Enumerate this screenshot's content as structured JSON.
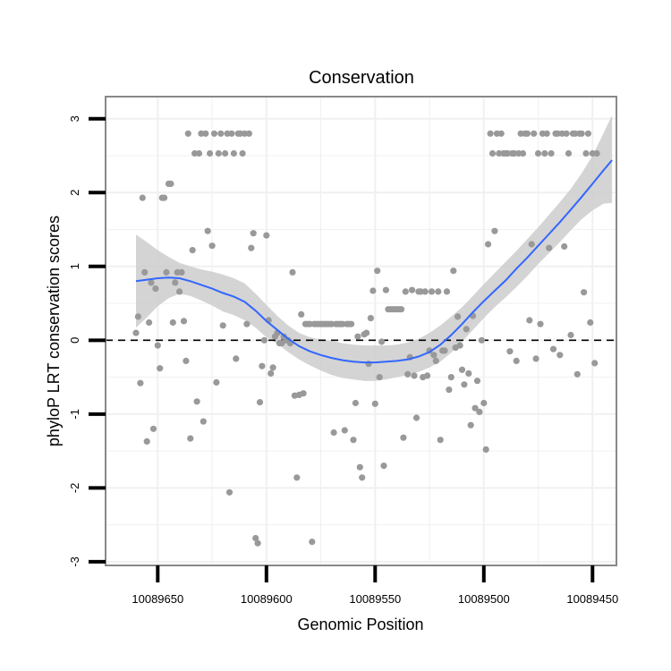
{
  "chart_data": {
    "type": "scatter",
    "title": "Conservation",
    "xlabel": "Genomic Position",
    "ylabel": "phyloP LRT conservation scores",
    "x_reversed": true,
    "xlim": [
      10089674,
      10089439
    ],
    "ylim": [
      -3.05,
      3.3
    ],
    "x_ticks": [
      {
        "value": 10089650,
        "label": "10089650"
      },
      {
        "value": 10089600,
        "label": "10089600"
      },
      {
        "value": 10089550,
        "label": "10089550"
      },
      {
        "value": 10089500,
        "label": "10089500"
      },
      {
        "value": 10089450,
        "label": "10089450"
      }
    ],
    "y_ticks": [
      {
        "value": 3,
        "label": "3"
      },
      {
        "value": 2,
        "label": "2"
      },
      {
        "value": 1,
        "label": "1"
      },
      {
        "value": 0,
        "label": "0"
      },
      {
        "value": -1,
        "label": "-1"
      },
      {
        "value": -2,
        "label": "-2"
      },
      {
        "value": -3,
        "label": "-3"
      }
    ],
    "reference_line": {
      "y": 0,
      "style": "dashed"
    },
    "grid": true,
    "colors": {
      "points": "#999999",
      "smooth_line": "#3366ff",
      "confidence_band": "#cccccc",
      "panel_border": "#888888",
      "grid": "#f0f0f0",
      "reference_line": "#000000"
    },
    "points": [
      [
        10089660,
        0.1
      ],
      [
        10089659,
        0.32
      ],
      [
        10089658,
        -0.58
      ],
      [
        10089657,
        1.93
      ],
      [
        10089656,
        0.92
      ],
      [
        10089655,
        -1.37
      ],
      [
        10089654,
        0.24
      ],
      [
        10089653,
        0.78
      ],
      [
        10089652,
        -1.2
      ],
      [
        10089651,
        0.7
      ],
      [
        10089650,
        -0.07
      ],
      [
        10089649,
        -0.38
      ],
      [
        10089648,
        1.93
      ],
      [
        10089647,
        1.93
      ],
      [
        10089646,
        0.92
      ],
      [
        10089645,
        2.12
      ],
      [
        10089644,
        2.12
      ],
      [
        10089643,
        0.24
      ],
      [
        10089642,
        0.78
      ],
      [
        10089641,
        0.92
      ],
      [
        10089640,
        0.66
      ],
      [
        10089639,
        0.92
      ],
      [
        10089638,
        0.26
      ],
      [
        10089637,
        -0.28
      ],
      [
        10089636,
        2.8
      ],
      [
        10089635,
        -1.33
      ],
      [
        10089634,
        1.22
      ],
      [
        10089633,
        2.53
      ],
      [
        10089632,
        -0.83
      ],
      [
        10089631,
        2.53
      ],
      [
        10089630,
        2.8
      ],
      [
        10089629,
        -1.1
      ],
      [
        10089628,
        2.8
      ],
      [
        10089627,
        1.48
      ],
      [
        10089626,
        2.53
      ],
      [
        10089625,
        1.28
      ],
      [
        10089624,
        2.8
      ],
      [
        10089623,
        -0.57
      ],
      [
        10089622,
        2.53
      ],
      [
        10089621,
        2.8
      ],
      [
        10089620,
        0.2
      ],
      [
        10089619,
        2.53
      ],
      [
        10089618,
        2.8
      ],
      [
        10089617,
        -2.06
      ],
      [
        10089616,
        2.8
      ],
      [
        10089615,
        2.53
      ],
      [
        10089614,
        -0.25
      ],
      [
        10089613,
        2.8
      ],
      [
        10089612,
        2.8
      ],
      [
        10089611,
        2.53
      ],
      [
        10089610,
        2.8
      ],
      [
        10089609,
        0.22
      ],
      [
        10089608,
        2.8
      ],
      [
        10089607,
        1.25
      ],
      [
        10089606,
        1.45
      ],
      [
        10089605,
        -2.68
      ],
      [
        10089604,
        -2.75
      ],
      [
        10089603,
        -0.84
      ],
      [
        10089602,
        -0.35
      ],
      [
        10089601,
        0.0
      ],
      [
        10089600,
        1.42
      ],
      [
        10089599,
        0.27
      ],
      [
        10089598,
        -0.45
      ],
      [
        10089597,
        -0.37
      ],
      [
        10089596,
        0.05
      ],
      [
        10089595,
        0.1
      ],
      [
        10089594,
        -0.04
      ],
      [
        10089593,
        -0.04
      ],
      [
        10089592,
        0.05
      ],
      [
        10089591,
        0.0
      ],
      [
        10089590,
        0.0
      ],
      [
        10089589,
        -0.04
      ],
      [
        10089588,
        0.92
      ],
      [
        10089587,
        -0.75
      ],
      [
        10089586,
        -1.86
      ],
      [
        10089585,
        -0.74
      ],
      [
        10089584,
        0.35
      ],
      [
        10089583,
        -0.72
      ],
      [
        10089582,
        0.22
      ],
      [
        10089581,
        0.22
      ],
      [
        10089580,
        0.22
      ],
      [
        10089579,
        -2.73
      ],
      [
        10089578,
        0.22
      ],
      [
        10089577,
        0.22
      ],
      [
        10089576,
        0.22
      ],
      [
        10089575,
        0.22
      ],
      [
        10089574,
        0.22
      ],
      [
        10089573,
        0.22
      ],
      [
        10089572,
        0.22
      ],
      [
        10089571,
        0.22
      ],
      [
        10089570,
        0.22
      ],
      [
        10089569,
        -1.25
      ],
      [
        10089568,
        0.22
      ],
      [
        10089567,
        0.22
      ],
      [
        10089566,
        0.22
      ],
      [
        10089565,
        0.22
      ],
      [
        10089564,
        -1.22
      ],
      [
        10089563,
        0.22
      ],
      [
        10089562,
        0.22
      ],
      [
        10089561,
        0.22
      ],
      [
        10089560,
        -1.35
      ],
      [
        10089559,
        -0.85
      ],
      [
        10089558,
        0.05
      ],
      [
        10089557,
        -1.72
      ],
      [
        10089556,
        -1.86
      ],
      [
        10089555,
        0.08
      ],
      [
        10089554,
        0.1
      ],
      [
        10089553,
        -0.32
      ],
      [
        10089552,
        0.3
      ],
      [
        10089551,
        0.67
      ],
      [
        10089550,
        -0.86
      ],
      [
        10089549,
        0.94
      ],
      [
        10089548,
        -0.5
      ],
      [
        10089547,
        -0.02
      ],
      [
        10089546,
        -1.7
      ],
      [
        10089545,
        0.68
      ],
      [
        10089544,
        0.42
      ],
      [
        10089543,
        0.42
      ],
      [
        10089542,
        0.42
      ],
      [
        10089541,
        0.42
      ],
      [
        10089540,
        0.42
      ],
      [
        10089539,
        0.42
      ],
      [
        10089538,
        0.42
      ],
      [
        10089537,
        -1.32
      ],
      [
        10089536,
        0.66
      ],
      [
        10089535,
        -0.46
      ],
      [
        10089534,
        -0.23
      ],
      [
        10089533,
        0.68
      ],
      [
        10089532,
        -0.48
      ],
      [
        10089531,
        -1.05
      ],
      [
        10089530,
        0.66
      ],
      [
        10089529,
        0.66
      ],
      [
        10089528,
        -0.5
      ],
      [
        10089527,
        0.66
      ],
      [
        10089526,
        -0.48
      ],
      [
        10089525,
        -0.14
      ],
      [
        10089524,
        0.66
      ],
      [
        10089523,
        -0.2
      ],
      [
        10089522,
        -0.28
      ],
      [
        10089521,
        0.66
      ],
      [
        10089520,
        -1.35
      ],
      [
        10089519,
        -0.14
      ],
      [
        10089518,
        -0.14
      ],
      [
        10089517,
        0.66
      ],
      [
        10089516,
        -0.67
      ],
      [
        10089515,
        -0.5
      ],
      [
        10089514,
        0.94
      ],
      [
        10089513,
        -0.1
      ],
      [
        10089512,
        0.32
      ],
      [
        10089511,
        -0.07
      ],
      [
        10089510,
        -0.4
      ],
      [
        10089509,
        -0.6
      ],
      [
        10089508,
        0.15
      ],
      [
        10089507,
        -0.45
      ],
      [
        10089506,
        -1.15
      ],
      [
        10089505,
        0.33
      ],
      [
        10089504,
        -0.92
      ],
      [
        10089503,
        -0.55
      ],
      [
        10089502,
        -0.97
      ],
      [
        10089501,
        0.0
      ],
      [
        10089500,
        -0.85
      ],
      [
        10089499,
        -1.48
      ],
      [
        10089498,
        1.3
      ],
      [
        10089497,
        2.8
      ],
      [
        10089496,
        2.53
      ],
      [
        10089495,
        1.48
      ],
      [
        10089494,
        2.8
      ],
      [
        10089493,
        2.53
      ],
      [
        10089492,
        2.8
      ],
      [
        10089491,
        2.53
      ],
      [
        10089490,
        2.53
      ],
      [
        10089489,
        2.53
      ],
      [
        10089488,
        -0.15
      ],
      [
        10089487,
        2.53
      ],
      [
        10089486,
        2.53
      ],
      [
        10089485,
        -0.28
      ],
      [
        10089484,
        2.53
      ],
      [
        10089483,
        2.8
      ],
      [
        10089482,
        2.53
      ],
      [
        10089481,
        2.8
      ],
      [
        10089480,
        2.8
      ],
      [
        10089479,
        0.27
      ],
      [
        10089478,
        1.3
      ],
      [
        10089477,
        2.8
      ],
      [
        10089476,
        -0.25
      ],
      [
        10089475,
        2.53
      ],
      [
        10089474,
        0.22
      ],
      [
        10089473,
        2.8
      ],
      [
        10089472,
        2.53
      ],
      [
        10089471,
        2.8
      ],
      [
        10089470,
        1.25
      ],
      [
        10089469,
        2.53
      ],
      [
        10089468,
        -0.12
      ],
      [
        10089467,
        2.8
      ],
      [
        10089466,
        2.8
      ],
      [
        10089465,
        -0.2
      ],
      [
        10089464,
        2.8
      ],
      [
        10089463,
        1.27
      ],
      [
        10089462,
        2.8
      ],
      [
        10089461,
        2.53
      ],
      [
        10089460,
        0.07
      ],
      [
        10089459,
        2.8
      ],
      [
        10089458,
        2.8
      ],
      [
        10089457,
        -0.46
      ],
      [
        10089456,
        2.8
      ],
      [
        10089455,
        2.8
      ],
      [
        10089454,
        0.65
      ],
      [
        10089453,
        2.53
      ],
      [
        10089452,
        2.8
      ],
      [
        10089451,
        0.24
      ],
      [
        10089450,
        2.53
      ],
      [
        10089449,
        -0.31
      ],
      [
        10089448,
        2.53
      ]
    ],
    "smooth_curve": [
      [
        10089660,
        0.8
      ],
      [
        10089655,
        0.82
      ],
      [
        10089650,
        0.84
      ],
      [
        10089645,
        0.85
      ],
      [
        10089640,
        0.84
      ],
      [
        10089635,
        0.8
      ],
      [
        10089630,
        0.75
      ],
      [
        10089625,
        0.7
      ],
      [
        10089620,
        0.64
      ],
      [
        10089615,
        0.59
      ],
      [
        10089610,
        0.52
      ],
      [
        10089605,
        0.4
      ],
      [
        10089600,
        0.26
      ],
      [
        10089595,
        0.14
      ],
      [
        10089590,
        0.02
      ],
      [
        10089585,
        -0.08
      ],
      [
        10089580,
        -0.15
      ],
      [
        10089575,
        -0.2
      ],
      [
        10089570,
        -0.24
      ],
      [
        10089565,
        -0.27
      ],
      [
        10089560,
        -0.29
      ],
      [
        10089555,
        -0.3
      ],
      [
        10089550,
        -0.3
      ],
      [
        10089545,
        -0.29
      ],
      [
        10089540,
        -0.28
      ],
      [
        10089535,
        -0.26
      ],
      [
        10089530,
        -0.22
      ],
      [
        10089525,
        -0.16
      ],
      [
        10089520,
        -0.06
      ],
      [
        10089515,
        0.07
      ],
      [
        10089510,
        0.22
      ],
      [
        10089505,
        0.38
      ],
      [
        10089500,
        0.53
      ],
      [
        10089495,
        0.67
      ],
      [
        10089490,
        0.81
      ],
      [
        10089485,
        0.97
      ],
      [
        10089480,
        1.12
      ],
      [
        10089475,
        1.28
      ],
      [
        10089470,
        1.44
      ],
      [
        10089465,
        1.6
      ],
      [
        10089460,
        1.77
      ],
      [
        10089455,
        1.94
      ],
      [
        10089450,
        2.12
      ],
      [
        10089445,
        2.3
      ],
      [
        10089441,
        2.44
      ]
    ],
    "confidence_band": {
      "upper": [
        [
          10089660,
          1.43
        ],
        [
          10089655,
          1.33
        ],
        [
          10089650,
          1.22
        ],
        [
          10089645,
          1.13
        ],
        [
          10089640,
          1.05
        ],
        [
          10089635,
          1.0
        ],
        [
          10089630,
          0.96
        ],
        [
          10089625,
          0.93
        ],
        [
          10089620,
          0.89
        ],
        [
          10089615,
          0.84
        ],
        [
          10089610,
          0.77
        ],
        [
          10089605,
          0.63
        ],
        [
          10089600,
          0.48
        ],
        [
          10089595,
          0.33
        ],
        [
          10089590,
          0.2
        ],
        [
          10089585,
          0.1
        ],
        [
          10089580,
          0.04
        ],
        [
          10089575,
          0.01
        ],
        [
          10089570,
          -0.01
        ],
        [
          10089565,
          -0.04
        ],
        [
          10089560,
          -0.06
        ],
        [
          10089555,
          -0.07
        ],
        [
          10089550,
          -0.07
        ],
        [
          10089545,
          -0.07
        ],
        [
          10089540,
          -0.06
        ],
        [
          10089535,
          -0.03
        ],
        [
          10089530,
          0.02
        ],
        [
          10089525,
          0.1
        ],
        [
          10089520,
          0.2
        ],
        [
          10089515,
          0.32
        ],
        [
          10089510,
          0.45
        ],
        [
          10089505,
          0.6
        ],
        [
          10089500,
          0.76
        ],
        [
          10089495,
          0.91
        ],
        [
          10089490,
          1.06
        ],
        [
          10089485,
          1.21
        ],
        [
          10089480,
          1.37
        ],
        [
          10089475,
          1.53
        ],
        [
          10089470,
          1.7
        ],
        [
          10089465,
          1.87
        ],
        [
          10089460,
          2.05
        ],
        [
          10089455,
          2.26
        ],
        [
          10089450,
          2.5
        ],
        [
          10089445,
          2.8
        ],
        [
          10089441,
          3.05
        ]
      ],
      "lower": [
        [
          10089660,
          0.17
        ],
        [
          10089655,
          0.31
        ],
        [
          10089650,
          0.46
        ],
        [
          10089645,
          0.57
        ],
        [
          10089640,
          0.63
        ],
        [
          10089635,
          0.6
        ],
        [
          10089630,
          0.54
        ],
        [
          10089625,
          0.47
        ],
        [
          10089620,
          0.39
        ],
        [
          10089615,
          0.34
        ],
        [
          10089610,
          0.27
        ],
        [
          10089605,
          0.17
        ],
        [
          10089600,
          0.04
        ],
        [
          10089595,
          -0.05
        ],
        [
          10089590,
          -0.16
        ],
        [
          10089585,
          -0.26
        ],
        [
          10089580,
          -0.34
        ],
        [
          10089575,
          -0.41
        ],
        [
          10089570,
          -0.47
        ],
        [
          10089565,
          -0.51
        ],
        [
          10089560,
          -0.53
        ],
        [
          10089555,
          -0.55
        ],
        [
          10089550,
          -0.55
        ],
        [
          10089545,
          -0.53
        ],
        [
          10089540,
          -0.5
        ],
        [
          10089535,
          -0.47
        ],
        [
          10089530,
          -0.43
        ],
        [
          10089525,
          -0.37
        ],
        [
          10089520,
          -0.29
        ],
        [
          10089515,
          -0.17
        ],
        [
          10089510,
          -0.02
        ],
        [
          10089505,
          0.14
        ],
        [
          10089500,
          0.3
        ],
        [
          10089495,
          0.45
        ],
        [
          10089490,
          0.58
        ],
        [
          10089485,
          0.72
        ],
        [
          10089480,
          0.87
        ],
        [
          10089475,
          1.03
        ],
        [
          10089470,
          1.18
        ],
        [
          10089465,
          1.33
        ],
        [
          10089460,
          1.49
        ],
        [
          10089455,
          1.64
        ],
        [
          10089450,
          1.76
        ],
        [
          10089445,
          1.85
        ],
        [
          10089441,
          1.86
        ]
      ]
    }
  }
}
